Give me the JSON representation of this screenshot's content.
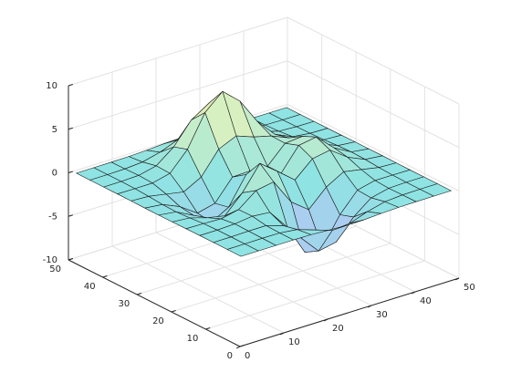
{
  "chart_data": {
    "type": "surface",
    "x": [
      1,
      5,
      9,
      13,
      17,
      21,
      25,
      29,
      33,
      37,
      41,
      45,
      49
    ],
    "y": [
      1,
      5,
      9,
      13,
      17,
      21,
      25,
      29,
      33,
      37,
      41,
      45,
      49
    ],
    "z": [
      [
        0,
        0,
        0,
        0,
        -0.03,
        -0.14,
        -0.24,
        -0.22,
        -0.11,
        -0.03,
        -0.01,
        0,
        0
      ],
      [
        0,
        0,
        0.02,
        0,
        -0.23,
        -0.91,
        -1.57,
        -1.41,
        -0.69,
        -0.18,
        -0.03,
        0,
        0
      ],
      [
        0,
        0.01,
        0.05,
        0.05,
        -0.59,
        -2.63,
        -4.75,
        -4.34,
        -2.1,
        -0.53,
        -0.06,
        0,
        0
      ],
      [
        0,
        0,
        0.08,
        0.33,
        0.15,
        -2.19,
        -5.68,
        -5.76,
        -2.64,
        -0.44,
        0.04,
        0.03,
        0
      ],
      [
        -0.01,
        -0.06,
        -0.13,
        0.3,
        1.86,
        2.22,
        -0.72,
        -2.22,
        -0.27,
        0.88,
        0.5,
        0.11,
        0.01
      ],
      [
        -0.03,
        -0.2,
        -0.8,
        -1.21,
        0.8,
        3.55,
        2,
        0.39,
        2.2,
        2.56,
        1.12,
        0.24,
        0.03
      ],
      [
        -0.04,
        -0.3,
        -1.33,
        -2.77,
        -1.65,
        1.48,
        0.98,
        0.38,
        2.94,
        3.27,
        1.41,
        0.3,
        0.03
      ],
      [
        -0.03,
        -0.25,
        -1.12,
        -2.49,
        -2,
        0.39,
        0.46,
        0.38,
        2.38,
        2.56,
        1.09,
        0.23,
        0.03
      ],
      [
        -0.01,
        -0.11,
        -0.48,
        -0.86,
        0.23,
        2.8,
        3.69,
        2.94,
        2.43,
        1.58,
        0.58,
        0.11,
        0.01
      ],
      [
        0,
        -0.02,
        -0.01,
        0.48,
        2.61,
        6.2,
        8,
        6.25,
        3.26,
        1.19,
        0.29,
        0.05,
        0
      ],
      [
        0,
        0.01,
        0.08,
        0.55,
        2.09,
        4.55,
        5.85,
        4.56,
        2.21,
        0.68,
        0.13,
        0.02,
        0
      ],
      [
        0,
        0,
        0.03,
        0.19,
        0.69,
        1.47,
        1.89,
        1.47,
        0.7,
        0.21,
        0.04,
        0,
        0
      ],
      [
        0,
        0,
        0.01,
        0.03,
        0.11,
        0.23,
        0.3,
        0.23,
        0.11,
        0.03,
        0.01,
        0,
        0
      ]
    ],
    "xlim": [
      0,
      50
    ],
    "ylim": [
      0,
      50
    ],
    "zlim": [
      -10,
      10
    ],
    "xticks": [
      0,
      10,
      20,
      30,
      40,
      50
    ],
    "yticks": [
      0,
      10,
      20,
      30,
      40,
      50
    ],
    "zticks": [
      -10,
      -5,
      0,
      5,
      10
    ],
    "grid": true,
    "colormap": [
      "#a59cf0",
      "#b4c6f4",
      "#8fe3e3",
      "#d6f0c2",
      "#ffe89a"
    ],
    "edge_color": "#1a1a1a"
  }
}
